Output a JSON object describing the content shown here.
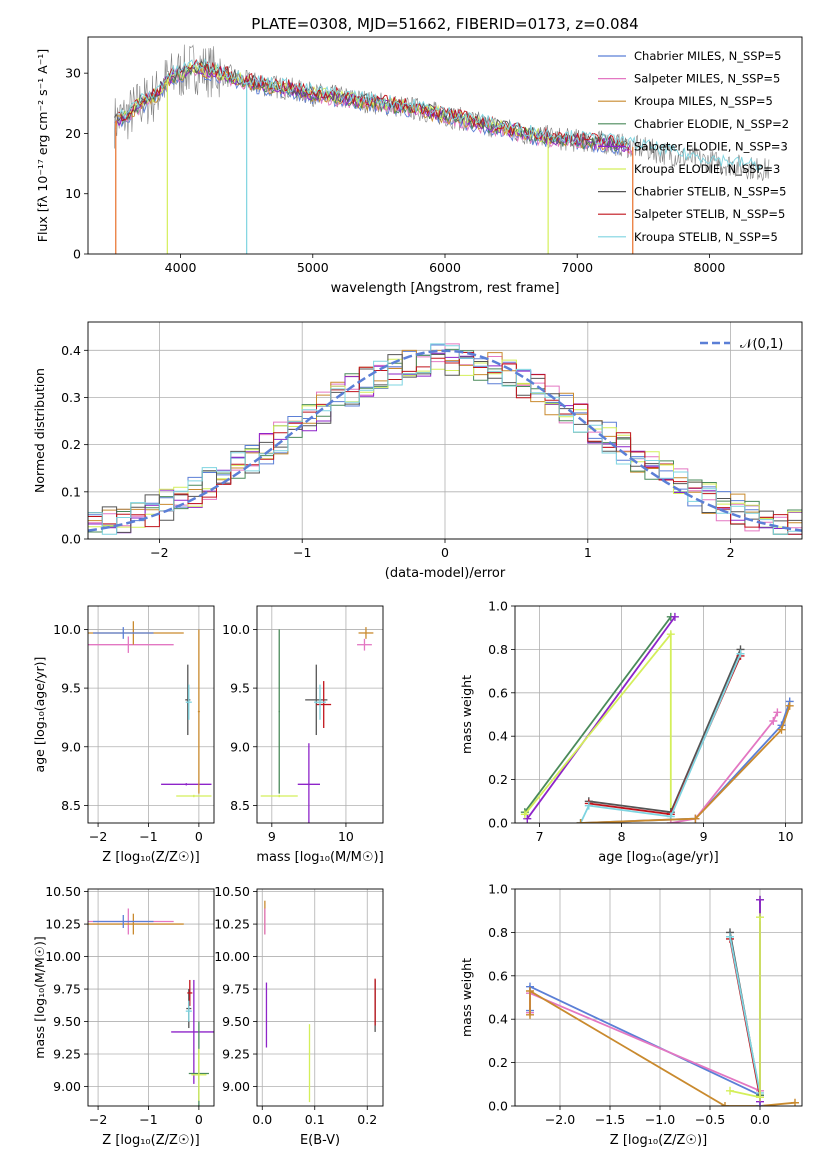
{
  "figure_title": "PLATE=0308, MJD=51662, FIBERID=0173, z=0.084",
  "colors": {
    "Chabrier MILES": "#5b7fd6",
    "Salpeter MILES": "#e377c2",
    "Kroupa MILES": "#c98a2e",
    "Chabrier ELODIE": "#4a8a5a",
    "Salpeter ELODIE": "#8e24c9",
    "Kroupa ELODIE": "#d4ef5a",
    "Chabrier STELIB": "#555555",
    "Salpeter STELIB": "#c0141c",
    "Kroupa STELIB": "#7ed4e0",
    "data": "#808080",
    "normal": "#5b7fd6",
    "fit_orange": "#e8702a"
  },
  "chart_data": [
    {
      "id": "spectrum",
      "type": "line",
      "title": "PLATE=0308, MJD=51662, FIBERID=0173, z=0.084",
      "xlabel": "wavelength [Angstrom, rest frame]",
      "ylabel": "Flux [fλ 10⁻¹⁷ erg cm⁻² s⁻¹ A⁻¹]",
      "xlim": [
        3300,
        8700
      ],
      "ylim": [
        0,
        36
      ],
      "xticks": [
        4000,
        5000,
        6000,
        7000,
        8000
      ],
      "yticks": [
        0,
        10,
        20,
        30
      ],
      "grid": false,
      "legend": "top-right",
      "legend_entries": [
        "Chabrier MILES, N_SSP=5",
        "Salpeter MILES, N_SSP=5",
        "Kroupa MILES, N_SSP=5",
        "Chabrier ELODIE, N_SSP=2",
        "Salpeter ELODIE, N_SSP=3",
        "Kroupa ELODIE, N_SSP=3",
        "Chabrier STELIB, N_SSP=5",
        "Salpeter STELIB, N_SSP=5",
        "Kroupa STELIB, N_SSP=5"
      ],
      "model_envelope": {
        "x": [
          3500,
          3600,
          3700,
          3800,
          3900,
          4000,
          4100,
          4300,
          4500,
          4800,
          5000,
          5200,
          5500,
          5800,
          6000,
          6300,
          6600,
          6900,
          7200,
          7500,
          7800,
          8100,
          8400
        ],
        "y": [
          22,
          23,
          25,
          26,
          29,
          30,
          31,
          30,
          28.5,
          27.5,
          26.5,
          26,
          25,
          24,
          23,
          21.5,
          20,
          19,
          18.5,
          17.5,
          16,
          15,
          14
        ]
      }
    },
    {
      "id": "residuals",
      "type": "bar",
      "xlabel": "(data-model)/error",
      "ylabel": "Normed distribution",
      "xlim": [
        -2.5,
        2.5
      ],
      "ylim": [
        0,
        0.46
      ],
      "xticks": [
        -2,
        -1,
        0,
        1,
        2
      ],
      "yticks": [
        0.0,
        0.1,
        0.2,
        0.3,
        0.4
      ],
      "grid": true,
      "legend": "top-right",
      "legend_entries": [
        "𝒩(0,1)"
      ]
    },
    {
      "id": "age-vs-Z",
      "type": "scatter",
      "xlabel": "Z [log₁₀(Z/Z☉)]",
      "ylabel": "age  [log₁₀(age/yr)]",
      "xlim": [
        -2.2,
        0.3
      ],
      "ylim": [
        8.35,
        10.2
      ],
      "xticks": [
        -2,
        -1,
        0
      ],
      "yticks": [
        8.5,
        9.0,
        9.5,
        10.0
      ],
      "grid": true,
      "points": [
        {
          "series": "Salpeter MILES",
          "x": -1.4,
          "y": 9.87,
          "xerr": 0.9,
          "yerr": 0.07
        },
        {
          "series": "Kroupa MILES",
          "x": -1.3,
          "y": 9.97,
          "xerr": 1.0,
          "yerr": 0.1
        },
        {
          "series": "Chabrier MILES",
          "x": -1.5,
          "y": 9.97,
          "xerr": 0.6,
          "yerr": 0.05
        },
        {
          "series": "Chabrier STELIB",
          "x": -0.22,
          "y": 9.4,
          "xerr": 0.05,
          "yerr": 0.3
        },
        {
          "series": "Kroupa STELIB",
          "x": -0.2,
          "y": 9.38,
          "xerr": 0.06,
          "yerr": 0.15
        },
        {
          "series": "Salpeter ELODIE",
          "x": -0.25,
          "y": 8.68,
          "xerr": 0.5,
          "yerr": 0.01
        },
        {
          "series": "Kroupa ELODIE",
          "x": -0.1,
          "y": 8.58,
          "xerr": 0.35,
          "yerr": 0.01
        },
        {
          "series": "Kroupa MILES",
          "x": 0.0,
          "y": 9.3,
          "xerr": 0.02,
          "yerr": 0.7
        }
      ]
    },
    {
      "id": "age-vs-mass",
      "type": "scatter",
      "xlabel": "mass [log₁₀(M/M☉)]",
      "xlim": [
        8.8,
        10.5
      ],
      "ylim": [
        8.35,
        10.2
      ],
      "xticks": [
        9,
        10
      ],
      "yticks": [
        8.5,
        9.0,
        9.5,
        10.0
      ],
      "grid": true,
      "points": [
        {
          "series": "Chabrier STELIB",
          "x": 9.6,
          "y": 9.4,
          "xerr": 0.15,
          "yerr": 0.3
        },
        {
          "series": "Salpeter STELIB",
          "x": 9.7,
          "y": 9.36,
          "xerr": 0.1,
          "yerr": 0.2
        },
        {
          "series": "Kroupa STELIB",
          "x": 9.65,
          "y": 9.38,
          "xerr": 0.08,
          "yerr": 0.15
        },
        {
          "series": "Salpeter ELODIE",
          "x": 9.5,
          "y": 8.68,
          "xerr": 0.15,
          "yerr": 0.35
        },
        {
          "series": "Kroupa ELODIE",
          "x": 9.1,
          "y": 8.58,
          "xerr": 0.25,
          "yerr": 0.01
        },
        {
          "series": "Chabrier ELODIE",
          "x": 9.1,
          "y": 9.3,
          "xerr": 0.01,
          "yerr": 0.7
        },
        {
          "series": "Kroupa MILES",
          "x": 10.27,
          "y": 9.97,
          "xerr": 0.1,
          "yerr": 0.05
        },
        {
          "series": "Salpeter MILES",
          "x": 10.25,
          "y": 9.87,
          "xerr": 0.1,
          "yerr": 0.05
        }
      ]
    },
    {
      "id": "mass-weight-vs-age",
      "type": "line",
      "xlabel": "age  [log₁₀(age/yr)]",
      "ylabel": "mass weight",
      "xlim": [
        6.7,
        10.2
      ],
      "ylim": [
        0,
        1
      ],
      "xticks": [
        7,
        8,
        9,
        10
      ],
      "yticks": [
        0.0,
        0.2,
        0.4,
        0.6,
        0.8,
        1.0
      ],
      "grid": true,
      "series": [
        {
          "name": "Chabrier ELODIE",
          "x": [
            6.82,
            8.6
          ],
          "y": [
            0.05,
            0.95
          ]
        },
        {
          "name": "Salpeter ELODIE",
          "x": [
            6.85,
            8.65
          ],
          "y": [
            0.02,
            0.95
          ]
        },
        {
          "name": "Kroupa ELODIE",
          "x": [
            6.82,
            8.6,
            8.6
          ],
          "y": [
            0.04,
            0.87,
            0.0
          ]
        },
        {
          "name": "Chabrier STELIB",
          "x": [
            7.6,
            8.6,
            9.45
          ],
          "y": [
            0.1,
            0.05,
            0.8
          ]
        },
        {
          "name": "Salpeter STELIB",
          "x": [
            7.6,
            8.6,
            9.45
          ],
          "y": [
            0.09,
            0.04,
            0.77
          ]
        },
        {
          "name": "Kroupa STELIB",
          "x": [
            7.5,
            7.6,
            8.6,
            9.45
          ],
          "y": [
            0.0,
            0.08,
            0.03,
            0.78
          ]
        },
        {
          "name": "Chabrier MILES",
          "x": [
            7.5,
            8.9,
            9.95,
            10.05
          ],
          "y": [
            0.0,
            0.02,
            0.45,
            0.56
          ]
        },
        {
          "name": "Salpeter MILES",
          "x": [
            8.6,
            8.9,
            9.85,
            9.9
          ],
          "y": [
            0.0,
            0.02,
            0.47,
            0.51
          ]
        },
        {
          "name": "Kroupa MILES",
          "x": [
            7.5,
            8.9,
            9.95,
            10.05
          ],
          "y": [
            0.0,
            0.02,
            0.43,
            0.54
          ]
        }
      ]
    },
    {
      "id": "mass-vs-Z",
      "type": "scatter",
      "xlabel": "Z [log₁₀(Z/Z☉)]",
      "ylabel": "mass [log₁₀(M/M☉)]",
      "xlim": [
        -2.2,
        0.3
      ],
      "ylim": [
        8.85,
        10.52
      ],
      "xticks": [
        -2,
        -1,
        0
      ],
      "yticks": [
        9.0,
        9.25,
        9.5,
        9.75,
        10.0,
        10.25,
        10.5
      ],
      "grid": true,
      "points": [
        {
          "series": "Salpeter MILES",
          "x": -1.4,
          "y": 10.27,
          "xerr": 0.9,
          "yerr": 0.1
        },
        {
          "series": "Kroupa MILES",
          "x": -1.3,
          "y": 10.25,
          "xerr": 1.0,
          "yerr": 0.08
        },
        {
          "series": "Chabrier MILES",
          "x": -1.5,
          "y": 10.27,
          "xerr": 0.6,
          "yerr": 0.05
        },
        {
          "series": "Chabrier STELIB",
          "x": -0.2,
          "y": 9.6,
          "xerr": 0.05,
          "yerr": 0.15
        },
        {
          "series": "Salpeter STELIB",
          "x": -0.18,
          "y": 9.72,
          "xerr": 0.05,
          "yerr": 0.1
        },
        {
          "series": "Kroupa STELIB",
          "x": -0.2,
          "y": 9.58,
          "xerr": 0.06,
          "yerr": 0.08
        },
        {
          "series": "Salpeter ELODIE",
          "x": -0.1,
          "y": 9.42,
          "xerr": 0.45,
          "yerr": 0.4
        },
        {
          "series": "Chabrier ELODIE",
          "x": 0.0,
          "y": 9.1,
          "xerr": 0.2,
          "yerr": 0.4
        },
        {
          "series": "Kroupa ELODIE",
          "x": 0.0,
          "y": 9.09,
          "xerr": 0.15,
          "yerr": 0.2
        }
      ]
    },
    {
      "id": "mass-vs-EBV",
      "type": "scatter",
      "xlabel": "E(B-V)",
      "xlim": [
        -0.01,
        0.23
      ],
      "ylim": [
        8.85,
        10.52
      ],
      "xticks": [
        0.0,
        0.1,
        0.2
      ],
      "yticks": [
        9.0,
        9.25,
        9.5,
        9.75,
        10.0,
        10.25,
        10.5
      ],
      "grid": true,
      "points": [
        {
          "series": "Kroupa MILES",
          "x": 0.005,
          "y": 10.3,
          "xerr": 0.0,
          "yerr": 0.13
        },
        {
          "series": "Salpeter MILES",
          "x": 0.005,
          "y": 10.27,
          "xerr": 0.0,
          "yerr": 0.1
        },
        {
          "series": "Salpeter ELODIE",
          "x": 0.008,
          "y": 9.55,
          "xerr": 0.0,
          "yerr": 0.25
        },
        {
          "series": "Kroupa ELODIE",
          "x": 0.09,
          "y": 9.18,
          "xerr": 0.0,
          "yerr": 0.3
        },
        {
          "series": "Chabrier STELIB",
          "x": 0.215,
          "y": 9.62,
          "xerr": 0.0,
          "yerr": 0.2
        },
        {
          "series": "Salpeter STELIB",
          "x": 0.215,
          "y": 9.65,
          "xerr": 0.0,
          "yerr": 0.18
        }
      ]
    },
    {
      "id": "mass-weight-vs-Z",
      "type": "line",
      "xlabel": "Z [log₁₀(Z/Z☉)]",
      "ylabel": "mass weight",
      "xlim": [
        -2.45,
        0.42
      ],
      "ylim": [
        0,
        1
      ],
      "xticks": [
        -2.0,
        -1.5,
        -1.0,
        -0.5,
        0.0
      ],
      "yticks": [
        0.0,
        0.2,
        0.4,
        0.6,
        0.8,
        1.0
      ],
      "grid": true,
      "series": [
        {
          "name": "Chabrier MILES",
          "x": [
            -2.3,
            -2.3,
            0.0,
            0.0
          ],
          "y": [
            0.44,
            0.55,
            0.05,
            0.0
          ]
        },
        {
          "name": "Salpeter MILES",
          "x": [
            -2.3,
            -2.3,
            0.0,
            0.0
          ],
          "y": [
            0.43,
            0.52,
            0.07,
            0.0
          ]
        },
        {
          "name": "Kroupa MILES",
          "x": [
            -2.3,
            -2.3,
            -0.35,
            0.0,
            0.35
          ],
          "y": [
            0.42,
            0.53,
            0.0,
            0.0,
            0.015
          ]
        },
        {
          "name": "Chabrier STELIB",
          "x": [
            -0.3,
            0.0,
            0.0
          ],
          "y": [
            0.8,
            0.05,
            0.0
          ]
        },
        {
          "name": "Salpeter STELIB",
          "x": [
            -0.3,
            0.0,
            0.0
          ],
          "y": [
            0.77,
            0.04,
            0.0
          ]
        },
        {
          "name": "Kroupa STELIB",
          "x": [
            -0.3,
            0.0,
            0.0
          ],
          "y": [
            0.78,
            0.06,
            0.0
          ]
        },
        {
          "name": "Chabrier ELODIE",
          "x": [
            0.0,
            0.0
          ],
          "y": [
            0.95,
            0.05
          ]
        },
        {
          "name": "Salpeter ELODIE",
          "x": [
            0.0,
            0.0
          ],
          "y": [
            0.95,
            0.02
          ]
        },
        {
          "name": "Kroupa ELODIE",
          "x": [
            -0.3,
            0.0,
            0.0
          ],
          "y": [
            0.07,
            0.04,
            0.87
          ]
        }
      ]
    }
  ]
}
